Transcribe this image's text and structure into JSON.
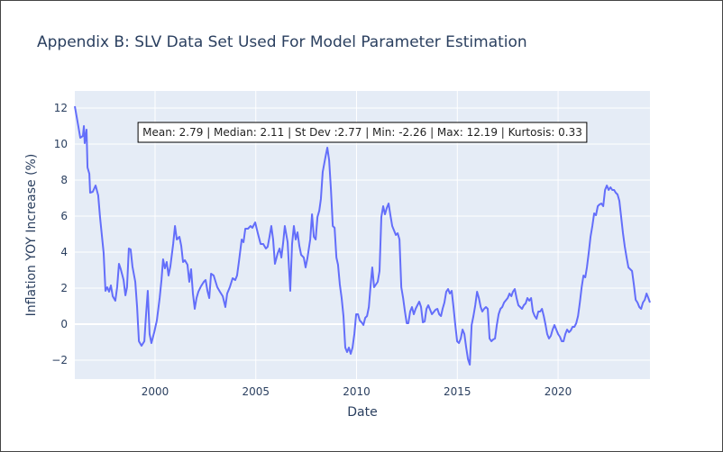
{
  "chart_data": {
    "type": "line",
    "title": "Appendix B: SLV Data Set Used For Model Parameter Estimation",
    "x_label": "Date",
    "y_label": "Inflation YOY Increase (%)",
    "annotation": "Mean: 2.79 | Median: 2.11 | St Dev :2.77 | Min: -2.26 | Max: 12.19 | Kurtosis: 0.33",
    "xlim": [
      1996.02,
      2024.56
    ],
    "xticks": [
      2000,
      2005,
      2010,
      2015,
      2020
    ],
    "ylim": [
      -3.05,
      12.95
    ],
    "yticks": [
      {
        "value": -2,
        "label": "−2"
      },
      0,
      2,
      4,
      6,
      8,
      10,
      12
    ],
    "grid": true,
    "series": [
      {
        "color": "#636efa",
        "x": [
          1996.02,
          1996.2,
          1996.29,
          1996.42,
          1996.47,
          1996.51,
          1996.6,
          1996.65,
          1996.74,
          1996.78,
          1996.91,
          1997.05,
          1997.18,
          1997.27,
          1997.45,
          1997.54,
          1997.63,
          1997.72,
          1997.81,
          1997.9,
          1998.03,
          1998.12,
          1998.21,
          1998.3,
          1998.44,
          1998.53,
          1998.61,
          1998.7,
          1998.79,
          1998.88,
          1999.02,
          1999.11,
          1999.2,
          1999.33,
          1999.47,
          1999.55,
          1999.64,
          1999.73,
          1999.82,
          1999.96,
          2000.09,
          2000.23,
          2000.32,
          2000.4,
          2000.49,
          2000.58,
          2000.67,
          2000.76,
          2000.9,
          2000.99,
          2001.08,
          2001.21,
          2001.3,
          2001.39,
          2001.48,
          2001.61,
          2001.7,
          2001.79,
          2001.88,
          2001.97,
          2002.06,
          2002.15,
          2002.28,
          2002.42,
          2002.51,
          2002.6,
          2002.69,
          2002.78,
          2002.91,
          2003.09,
          2003.22,
          2003.36,
          2003.49,
          2003.58,
          2003.71,
          2003.85,
          2003.98,
          2004.07,
          2004.16,
          2004.3,
          2004.39,
          2004.48,
          2004.61,
          2004.74,
          2004.83,
          2004.97,
          2005.1,
          2005.24,
          2005.37,
          2005.5,
          2005.59,
          2005.68,
          2005.77,
          2005.86,
          2005.95,
          2006.09,
          2006.18,
          2006.27,
          2006.36,
          2006.44,
          2006.58,
          2006.71,
          2006.8,
          2006.89,
          2006.98,
          2007.07,
          2007.16,
          2007.25,
          2007.38,
          2007.47,
          2007.56,
          2007.7,
          2007.79,
          2007.88,
          2007.97,
          2008.06,
          2008.15,
          2008.23,
          2008.32,
          2008.46,
          2008.55,
          2008.64,
          2008.73,
          2008.82,
          2008.91,
          2009.0,
          2009.08,
          2009.17,
          2009.26,
          2009.35,
          2009.44,
          2009.53,
          2009.62,
          2009.71,
          2009.8,
          2009.89,
          2009.98,
          2010.07,
          2010.16,
          2010.25,
          2010.34,
          2010.43,
          2010.52,
          2010.61,
          2010.7,
          2010.78,
          2010.87,
          2010.96,
          2011.05,
          2011.14,
          2011.23,
          2011.32,
          2011.41,
          2011.5,
          2011.59,
          2011.68,
          2011.77,
          2011.86,
          2011.95,
          2012.04,
          2012.13,
          2012.22,
          2012.31,
          2012.4,
          2012.49,
          2012.57,
          2012.66,
          2012.75,
          2012.84,
          2012.93,
          2013.11,
          2013.2,
          2013.29,
          2013.38,
          2013.47,
          2013.56,
          2013.65,
          2013.74,
          2013.92,
          2014.01,
          2014.1,
          2014.19,
          2014.27,
          2014.36,
          2014.45,
          2014.54,
          2014.63,
          2014.72,
          2014.81,
          2014.9,
          2014.99,
          2015.08,
          2015.17,
          2015.26,
          2015.35,
          2015.44,
          2015.53,
          2015.62,
          2015.71,
          2015.8,
          2015.89,
          2015.98,
          2016.07,
          2016.16,
          2016.24,
          2016.33,
          2016.42,
          2016.51,
          2016.6,
          2016.69,
          2016.78,
          2016.87,
          2016.96,
          2017.05,
          2017.14,
          2017.23,
          2017.32,
          2017.5,
          2017.59,
          2017.68,
          2017.76,
          2017.85,
          2017.94,
          2018.03,
          2018.12,
          2018.21,
          2018.3,
          2018.39,
          2018.48,
          2018.57,
          2018.66,
          2018.75,
          2018.84,
          2018.93,
          2019.02,
          2019.11,
          2019.2,
          2019.29,
          2019.38,
          2019.46,
          2019.55,
          2019.64,
          2019.73,
          2019.82,
          2019.91,
          2020.0,
          2020.09,
          2020.18,
          2020.27,
          2020.36,
          2020.45,
          2020.54,
          2020.63,
          2020.72,
          2020.81,
          2020.9,
          2020.99,
          2021.08,
          2021.17,
          2021.26,
          2021.35,
          2021.43,
          2021.52,
          2021.61,
          2021.7,
          2021.79,
          2021.88,
          2021.97,
          2022.06,
          2022.15,
          2022.24,
          2022.33,
          2022.42,
          2022.51,
          2022.6,
          2022.69,
          2022.78,
          2022.86,
          2022.95,
          2023.04,
          2023.13,
          2023.22,
          2023.31,
          2023.4,
          2023.49,
          2023.58,
          2023.67,
          2023.76,
          2023.85,
          2023.94,
          2024.03,
          2024.12,
          2024.21,
          2024.3,
          2024.39,
          2024.48,
          2024.56
        ],
        "values": [
          12.1,
          10.95,
          10.35,
          10.45,
          11.0,
          10.05,
          10.8,
          8.7,
          8.35,
          7.3,
          7.35,
          7.7,
          7.15,
          5.95,
          3.95,
          1.85,
          2.05,
          1.8,
          2.15,
          1.55,
          1.3,
          2.05,
          3.35,
          3.05,
          2.45,
          1.6,
          2.05,
          4.2,
          4.15,
          3.2,
          2.35,
          0.95,
          -0.95,
          -1.2,
          -0.95,
          0.45,
          1.85,
          -0.55,
          -1.05,
          -0.45,
          0.2,
          1.45,
          2.45,
          3.6,
          3.1,
          3.45,
          2.7,
          3.2,
          4.45,
          5.45,
          4.7,
          4.85,
          4.35,
          3.45,
          3.55,
          3.3,
          2.35,
          3.05,
          1.7,
          0.85,
          1.45,
          1.8,
          2.1,
          2.35,
          2.45,
          1.85,
          1.45,
          2.8,
          2.7,
          2.05,
          1.8,
          1.55,
          0.95,
          1.7,
          2.05,
          2.55,
          2.45,
          2.7,
          3.45,
          4.7,
          4.55,
          5.3,
          5.3,
          5.45,
          5.35,
          5.65,
          5.05,
          4.45,
          4.45,
          4.2,
          4.3,
          4.85,
          5.45,
          4.7,
          3.35,
          3.95,
          4.2,
          3.7,
          4.55,
          5.45,
          4.55,
          1.85,
          4.45,
          5.45,
          4.7,
          5.1,
          4.35,
          3.85,
          3.7,
          3.15,
          3.65,
          4.7,
          6.1,
          4.85,
          4.7,
          5.95,
          6.3,
          6.95,
          8.45,
          9.3,
          9.8,
          9.1,
          7.45,
          5.45,
          5.35,
          3.7,
          3.3,
          2.2,
          1.45,
          0.45,
          -1.3,
          -1.55,
          -1.3,
          -1.65,
          -1.3,
          -0.55,
          0.55,
          0.55,
          0.2,
          0.1,
          -0.05,
          0.35,
          0.45,
          0.95,
          2.2,
          3.15,
          2.05,
          2.2,
          2.35,
          2.95,
          5.95,
          6.55,
          6.1,
          6.45,
          6.7,
          6.05,
          5.45,
          5.2,
          4.95,
          5.05,
          4.7,
          2.05,
          1.45,
          0.7,
          0.05,
          0.05,
          0.7,
          0.95,
          0.55,
          0.85,
          1.25,
          0.95,
          0.1,
          0.15,
          0.85,
          1.05,
          0.8,
          0.55,
          0.8,
          0.85,
          0.55,
          0.45,
          0.85,
          1.2,
          1.8,
          1.95,
          1.7,
          1.85,
          0.95,
          -0.05,
          -0.95,
          -1.05,
          -0.8,
          -0.3,
          -0.55,
          -1.3,
          -1.95,
          -2.25,
          -0.05,
          0.45,
          1.05,
          1.8,
          1.45,
          0.95,
          0.7,
          0.85,
          0.95,
          0.85,
          -0.8,
          -0.95,
          -0.85,
          -0.8,
          -0.05,
          0.55,
          0.85,
          0.95,
          1.2,
          1.45,
          1.7,
          1.55,
          1.8,
          1.95,
          1.45,
          1.05,
          0.95,
          0.85,
          1.05,
          1.15,
          1.45,
          1.3,
          1.45,
          0.7,
          0.45,
          0.3,
          0.7,
          0.7,
          0.85,
          0.45,
          -0.05,
          -0.55,
          -0.8,
          -0.65,
          -0.3,
          -0.05,
          -0.3,
          -0.55,
          -0.7,
          -0.95,
          -0.95,
          -0.55,
          -0.3,
          -0.45,
          -0.35,
          -0.15,
          -0.15,
          0.05,
          0.45,
          1.2,
          2.05,
          2.7,
          2.6,
          3.15,
          3.95,
          4.85,
          5.45,
          6.15,
          6.05,
          6.55,
          6.65,
          6.7,
          6.55,
          7.45,
          7.7,
          7.45,
          7.6,
          7.45,
          7.45,
          7.3,
          7.2,
          6.85,
          5.95,
          5.05,
          4.3,
          3.7,
          3.15,
          3.05,
          2.95,
          2.2,
          1.35,
          1.2,
          0.95,
          0.85,
          1.2,
          1.35,
          1.7,
          1.45,
          1.2
        ]
      }
    ]
  }
}
